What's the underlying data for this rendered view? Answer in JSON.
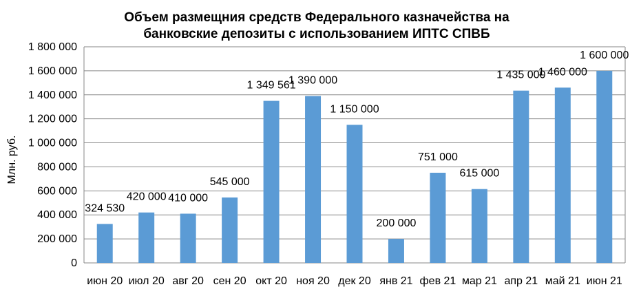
{
  "chart_data": {
    "type": "bar",
    "title_lines": [
      "Объем размещния средств Федерального казначейства на",
      "банковские депозиты с использованием ИПТС СПВБ"
    ],
    "ylabel": "Млн. руб.",
    "xlabel": "",
    "ylim": [
      0,
      1800000
    ],
    "yticks": [
      0,
      200000,
      400000,
      600000,
      800000,
      1000000,
      1200000,
      1400000,
      1600000,
      1800000
    ],
    "ytick_labels": [
      "0",
      "200 000",
      "400 000",
      "600 000",
      "800 000",
      "1 000 000",
      "1 200 000",
      "1 400 000",
      "1 600 000",
      "1 800 000"
    ],
    "categories": [
      "июн 20",
      "июл 20",
      "авг 20",
      "сен 20",
      "окт 20",
      "ноя 20",
      "дек 20",
      "янв 21",
      "фев 21",
      "мар 21",
      "апр 21",
      "май 21",
      "июн 21"
    ],
    "values": [
      324530,
      420000,
      410000,
      545000,
      1349561,
      1390000,
      1150000,
      200000,
      751000,
      615000,
      1435000,
      1460000,
      1600000
    ],
    "data_labels": [
      "324 530",
      "420 000",
      "410 000",
      "545 000",
      "1 349 561",
      "1 390 000",
      "1 150 000",
      "200 000",
      "751 000",
      "615 000",
      "1 435 000",
      "1 460 000",
      "1 600 000"
    ],
    "bar_color": "#5B9BD5",
    "grid": true,
    "legend": "none"
  }
}
